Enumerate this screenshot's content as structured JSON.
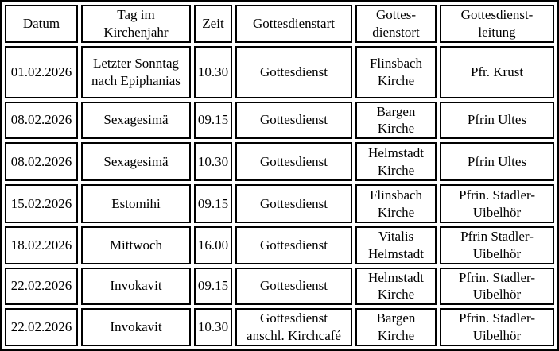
{
  "colors": {
    "border": "#000000",
    "background": "#ffffff",
    "text": "#000000"
  },
  "table": {
    "columns": [
      "Datum",
      "Tag im\nKirchenjahr",
      "Zeit",
      "Gottesdienstart",
      "Gottes-\ndienstort",
      "Gottesdienst-\nleitung"
    ],
    "rows": [
      [
        "01.02.2026",
        "Letzter Sonntag\nnach Epiphanias",
        "10.30",
        "Gottesdienst",
        "Flinsbach\nKirche",
        "Pfr. Krust"
      ],
      [
        "08.02.2026",
        "Sexagesimä",
        "09.15",
        "Gottesdienst",
        "Bargen\nKirche",
        "Pfrin Ultes"
      ],
      [
        "08.02.2026",
        "Sexagesimä",
        "10.30",
        "Gottesdienst",
        "Helmstadt\nKirche",
        "Pfrin Ultes"
      ],
      [
        "15.02.2026",
        "Estomihi",
        "09.15",
        "Gottesdienst",
        "Flinsbach\nKirche",
        "Pfrin. Stadler-\nUibelhör"
      ],
      [
        "18.02.2026",
        "Mittwoch",
        "16.00",
        "Gottesdienst",
        "Vitalis\nHelmstadt",
        "Pfrin Stadler-\nUibelhör"
      ],
      [
        "22.02.2026",
        "Invokavit",
        "09.15",
        "Gottesdienst",
        "Helmstadt\nKirche",
        "Pfrin. Stadler-\nUibelhör"
      ],
      [
        "22.02.2026",
        "Invokavit",
        "10.30",
        "Gottesdienst\nanschl. Kirchcafé",
        "Bargen\nKirche",
        "Pfrin. Stadler-\nUibelhör"
      ]
    ]
  }
}
